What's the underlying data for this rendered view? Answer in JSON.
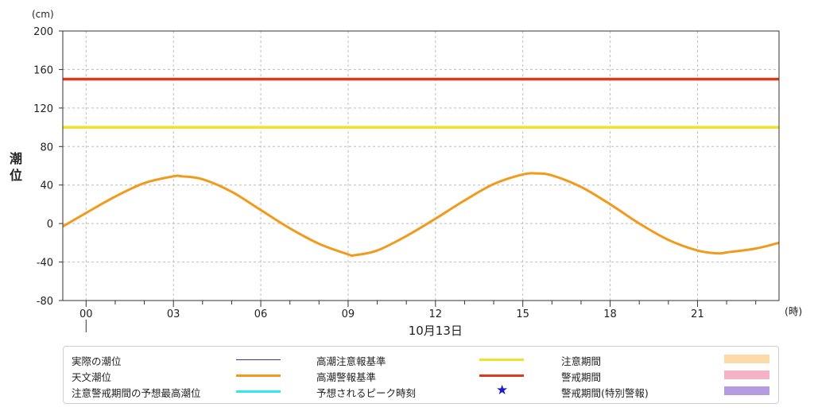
{
  "chart_data": {
    "type": "line",
    "y_unit": "(cm)",
    "ylabel": "潮位",
    "x_unit": "(時)",
    "xlabel": "10月13日",
    "xlim": [
      -0.8,
      23.8
    ],
    "ylim": [
      -80,
      200
    ],
    "y_ticks": [
      "200",
      "160",
      "120",
      "80",
      "40",
      "0",
      "-40",
      "-80"
    ],
    "y_tick_values": [
      200,
      160,
      120,
      80,
      40,
      0,
      -40,
      -80
    ],
    "x_ticks": [
      "00",
      "03",
      "06",
      "09",
      "12",
      "15",
      "18",
      "21"
    ],
    "x_tick_values": [
      0,
      3,
      6,
      9,
      12,
      15,
      18,
      21
    ],
    "grid": true,
    "reference_lines": [
      {
        "name": "高潮警報基準",
        "value": 150,
        "color": "#e03a1e"
      },
      {
        "name": "高潮注意報基準",
        "value": 100,
        "color": "#f0e12a"
      }
    ],
    "series": [
      {
        "name": "天文潮位",
        "color": "#f29a1c",
        "x": [
          -0.8,
          0,
          1,
          2,
          3,
          3.3,
          4,
          5,
          6,
          7,
          8,
          9,
          9.2,
          10,
          11,
          12,
          13,
          14,
          15,
          15.5,
          16,
          17,
          18,
          19,
          20,
          21,
          21.7,
          22,
          23,
          23.8
        ],
        "y": [
          -3,
          11,
          28,
          42,
          49,
          49,
          46,
          33,
          14,
          -5,
          -21,
          -32,
          -33,
          -28,
          -13,
          5,
          24,
          41,
          51,
          52,
          50,
          38,
          20,
          0,
          -17,
          -28,
          -31,
          -30,
          -26,
          -20
        ]
      }
    ]
  },
  "legend": {
    "items": [
      {
        "label": "実際の潮位",
        "color": "#3333aa",
        "kind": "thin"
      },
      {
        "label": "天文潮位",
        "color": "#f29a1c",
        "kind": "line"
      },
      {
        "label": "注意警戒期間の予想最高潮位",
        "color": "#33e6f0",
        "kind": "line"
      },
      {
        "label": "高潮注意報基準",
        "color": "#f0e12a",
        "kind": "line"
      },
      {
        "label": "高潮警報基準",
        "color": "#e03a1e",
        "kind": "line"
      },
      {
        "label": "予想されるピーク時刻",
        "color": "#1a1acc",
        "kind": "star",
        "symbol": "★"
      },
      {
        "label": "注意期間",
        "color": "#fcd9a8",
        "kind": "box"
      },
      {
        "label": "警戒期間",
        "color": "#f6b3c8",
        "kind": "box"
      },
      {
        "label": "警戒期間(特別警報)",
        "color": "#b79be0",
        "kind": "box"
      }
    ]
  }
}
